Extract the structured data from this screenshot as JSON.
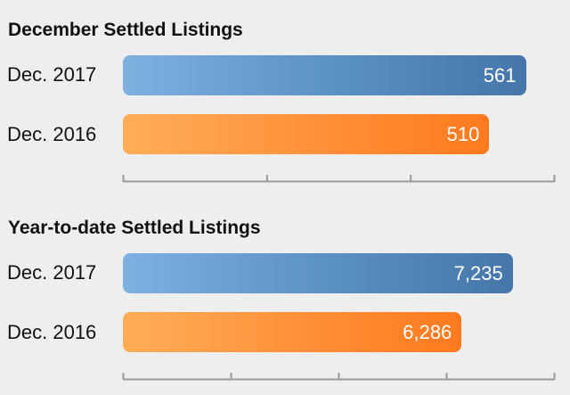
{
  "colors": {
    "background": "#eeeeee",
    "dec_2017_bar": "#5a8fc4",
    "dec_2016_bar": "#ff8f38",
    "axis": "#999999"
  },
  "chart_data": [
    {
      "type": "bar",
      "orientation": "horizontal",
      "title": "December Settled Listings",
      "categories": [
        "Dec. 2017",
        "Dec. 2016"
      ],
      "values": [
        561,
        510
      ],
      "value_labels": [
        "561",
        "510"
      ],
      "xlim": [
        0,
        600
      ],
      "x_tick_count": 4,
      "grid": false,
      "legend": "none"
    },
    {
      "type": "bar",
      "orientation": "horizontal",
      "title": "Year-to-date Settled Listings",
      "categories": [
        "Dec. 2017",
        "Dec. 2016"
      ],
      "values": [
        7235,
        6286
      ],
      "value_labels": [
        "7,235",
        "6,286"
      ],
      "xlim": [
        0,
        8000
      ],
      "x_tick_count": 5,
      "grid": false,
      "legend": "none"
    }
  ]
}
